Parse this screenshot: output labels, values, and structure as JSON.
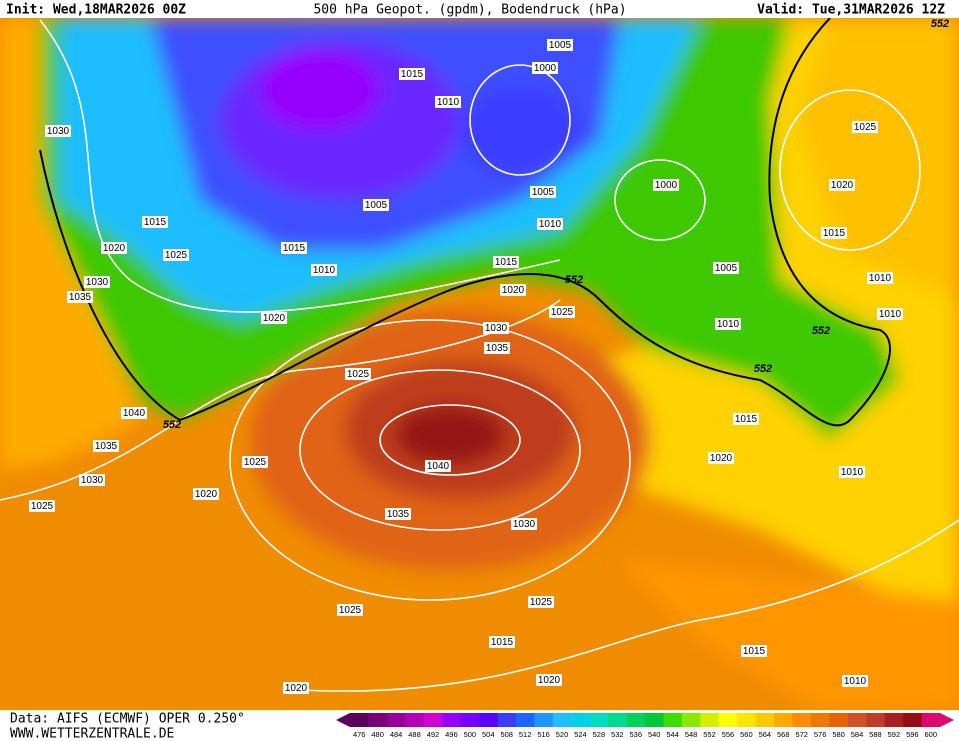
{
  "header": {
    "init": "Init: Wed,18MAR2026 00Z",
    "title": "500 hPa Geopot. (gpdm), Bodendruck (hPa)",
    "valid": "Valid: Tue,31MAR2026 12Z"
  },
  "isobar_labels": [
    "1005",
    "1000",
    "1015",
    "1010",
    "1030",
    "1025",
    "1020",
    "1000",
    "1005",
    "1005",
    "1015",
    "1010",
    "1015",
    "1020",
    "1025",
    "1015",
    "1015",
    "1005",
    "1010",
    "1030",
    "1010",
    "1020",
    "1035",
    "1025",
    "1020",
    "1010",
    "1010",
    "1030",
    "1035",
    "1025",
    "1040",
    "1015",
    "1035",
    "1020",
    "1025",
    "1040",
    "1010",
    "1030",
    "1020",
    "1025",
    "1035",
    "1030",
    "1025",
    "1025",
    "1015",
    "1015",
    "1020",
    "1010",
    "1020"
  ],
  "contour_552_labels": [
    "552",
    "552",
    "552",
    "552",
    "552"
  ],
  "footer": {
    "source": "Data: AIFS (ECMWF) OPER 0.250°",
    "url": "WWW.WETTERZENTRALE.DE"
  },
  "colorbar": {
    "levels": [
      476,
      480,
      484,
      488,
      492,
      496,
      500,
      504,
      508,
      512,
      516,
      520,
      524,
      528,
      532,
      536,
      540,
      544,
      548,
      552,
      556,
      560,
      564,
      568,
      572,
      576,
      580,
      584,
      588,
      592,
      596,
      600
    ],
    "colors": [
      "#5a005a",
      "#7a007a",
      "#96009a",
      "#b400b4",
      "#d200d2",
      "#9600ff",
      "#7800ff",
      "#5a00ff",
      "#3c3cff",
      "#1e64ff",
      "#1e96ff",
      "#1ebeff",
      "#00d2e6",
      "#00dcbe",
      "#00dc8c",
      "#00d25a",
      "#00c83c",
      "#3cdc00",
      "#8ce600",
      "#d2f000",
      "#ffff00",
      "#ffe600",
      "#ffc800",
      "#ffaa00",
      "#ff8c00",
      "#f07800",
      "#e66400",
      "#d25028",
      "#be3c28",
      "#aa1e1e",
      "#960a14",
      "#dc0a6e"
    ]
  }
}
